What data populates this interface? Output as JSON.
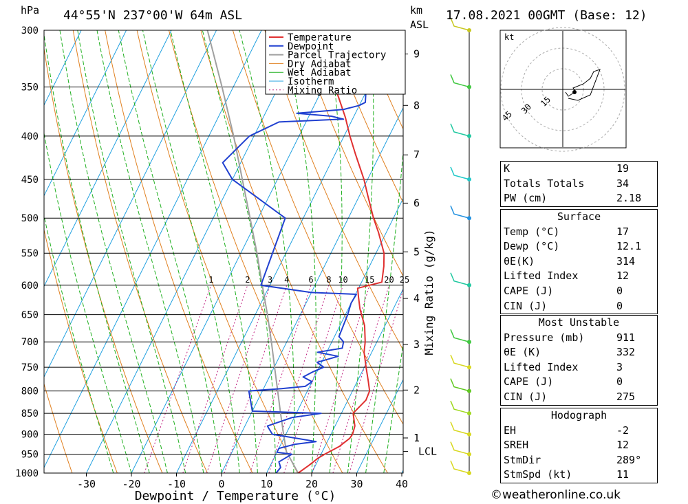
{
  "header": {
    "unit_hpa": "hPa",
    "location": "44°55'N  237°00'W  64m  ASL",
    "unit_km": "km",
    "unit_asl": "ASL",
    "datetime": "17.08.2021  00GMT  (Base: 12)"
  },
  "chart_data": {
    "type": "line",
    "title": "44°55'N 237°00'W 64m ASL",
    "xlabel": "Dewpoint / Temperature (°C)",
    "ylabel": "hPa",
    "y_scale": "log",
    "xlim": [
      -40,
      40
    ],
    "ylim": [
      1000,
      300
    ],
    "x_ticks": [
      -30,
      -20,
      -10,
      0,
      10,
      20,
      30,
      40
    ],
    "p_ticks": [
      300,
      350,
      400,
      450,
      500,
      550,
      600,
      650,
      700,
      750,
      800,
      850,
      900,
      950,
      1000
    ],
    "km_ticks": [
      {
        "label": "1",
        "p": 909
      },
      {
        "label": "2",
        "p": 798
      },
      {
        "label": "3",
        "p": 705
      },
      {
        "label": "4",
        "p": 622
      },
      {
        "label": "5",
        "p": 548
      },
      {
        "label": "6",
        "p": 480
      },
      {
        "label": "7",
        "p": 421
      },
      {
        "label": "8",
        "p": 368
      },
      {
        "label": "9",
        "p": 320
      }
    ],
    "lcl": {
      "label": "LCL",
      "p": 943
    },
    "mixing_ratio_label": "Mixing Ratio (g/kg)",
    "mixing_ratio_values": [
      "1",
      "2",
      "3",
      "4",
      "6",
      "8",
      "10",
      "15",
      "20",
      "25"
    ],
    "legend": [
      "Temperature",
      "Dewpoint",
      "Parcel Trajectory",
      "Dry Adiabat",
      "Wet Adiabat",
      "Isotherm",
      "Mixing Ratio"
    ],
    "colors": {
      "temperature": "#e03030",
      "dewpoint": "#2040d0",
      "parcel": "#a0a0a0",
      "dry_adiabat": "#e08020",
      "wet_adiabat": "#20b020",
      "isotherm": "#20a0e0",
      "mixing_ratio": "#c02080"
    },
    "series": [
      {
        "name": "Temperature",
        "points": [
          [
            1000,
            17
          ],
          [
            980,
            18.5
          ],
          [
            960,
            19.8
          ],
          [
            950,
            20.8
          ],
          [
            930,
            23.2
          ],
          [
            910,
            24.6
          ],
          [
            900,
            24.8
          ],
          [
            880,
            24.4
          ],
          [
            860,
            23.2
          ],
          [
            850,
            22.6
          ],
          [
            820,
            24
          ],
          [
            800,
            23.8
          ],
          [
            780,
            22.5
          ],
          [
            750,
            20.4
          ],
          [
            720,
            18.3
          ],
          [
            700,
            17.4
          ],
          [
            670,
            15.5
          ],
          [
            640,
            12.6
          ],
          [
            620,
            11
          ],
          [
            605,
            9.8
          ],
          [
            595,
            14.5
          ],
          [
            570,
            13.2
          ],
          [
            550,
            11.8
          ],
          [
            520,
            8.3
          ],
          [
            500,
            5.6
          ],
          [
            470,
            1.8
          ],
          [
            450,
            -0.8
          ],
          [
            420,
            -5.5
          ],
          [
            400,
            -8.7
          ],
          [
            380,
            -11.8
          ],
          [
            360,
            -15.5
          ],
          [
            340,
            -19.5
          ],
          [
            320,
            -23.2
          ],
          [
            300,
            -28
          ]
        ]
      },
      {
        "name": "Dewpoint",
        "points": [
          [
            1000,
            12.1
          ],
          [
            985,
            12.5
          ],
          [
            970,
            11.5
          ],
          [
            960,
            12.5
          ],
          [
            950,
            13.5
          ],
          [
            945,
            10
          ],
          [
            935,
            10
          ],
          [
            925,
            13
          ],
          [
            918,
            17.5
          ],
          [
            910,
            13
          ],
          [
            900,
            7
          ],
          [
            880,
            5
          ],
          [
            860,
            9.5
          ],
          [
            850,
            15.5
          ],
          [
            845,
            0
          ],
          [
            800,
            -3
          ],
          [
            795,
            4
          ],
          [
            790,
            9
          ],
          [
            780,
            10
          ],
          [
            770,
            7.5
          ],
          [
            760,
            9
          ],
          [
            750,
            11
          ],
          [
            740,
            9
          ],
          [
            728,
            13
          ],
          [
            720,
            8
          ],
          [
            712,
            13
          ],
          [
            700,
            12.6
          ],
          [
            690,
            11
          ],
          [
            650,
            10.5
          ],
          [
            630,
            10
          ],
          [
            615,
            10.2
          ],
          [
            612,
            0
          ],
          [
            600,
            -12
          ],
          [
            500,
            -14
          ],
          [
            450,
            -30
          ],
          [
            430,
            -34
          ],
          [
            400,
            -31
          ],
          [
            385,
            -26
          ],
          [
            382,
            -12
          ],
          [
            379,
            -15
          ],
          [
            376,
            -23
          ],
          [
            372,
            -13
          ],
          [
            368,
            -10
          ],
          [
            365,
            -9
          ],
          [
            355,
            -10
          ],
          [
            350,
            -8
          ],
          [
            345,
            -11
          ],
          [
            340,
            -17
          ],
          [
            335,
            -10
          ],
          [
            325,
            -14
          ],
          [
            315,
            -13
          ],
          [
            300,
            -14
          ]
        ]
      },
      {
        "name": "Parcel Trajectory",
        "points": [
          [
            1000,
            17
          ],
          [
            943,
            12
          ],
          [
            900,
            9.5
          ],
          [
            850,
            6.5
          ],
          [
            800,
            3.4
          ],
          [
            750,
            0.1
          ],
          [
            700,
            -3.4
          ],
          [
            650,
            -7.3
          ],
          [
            600,
            -11.7
          ],
          [
            550,
            -16.4
          ],
          [
            500,
            -21.8
          ],
          [
            450,
            -27.8
          ],
          [
            400,
            -34.5
          ],
          [
            350,
            -42.5
          ],
          [
            300,
            -52
          ]
        ]
      }
    ],
    "wind_barbs": [
      {
        "p": 1000,
        "color": "#d8d820"
      },
      {
        "p": 950,
        "color": "#d8d820"
      },
      {
        "p": 900,
        "color": "#d8d820"
      },
      {
        "p": 850,
        "color": "#a0d820"
      },
      {
        "p": 800,
        "color": "#60c820"
      },
      {
        "p": 750,
        "color": "#d8d820"
      },
      {
        "p": 700,
        "color": "#40c840"
      },
      {
        "p": 600,
        "color": "#20c8a0"
      },
      {
        "p": 500,
        "color": "#2090e0"
      },
      {
        "p": 450,
        "color": "#20c8c8"
      },
      {
        "p": 400,
        "color": "#20c8a0"
      },
      {
        "p": 350,
        "color": "#40c840"
      },
      {
        "p": 300,
        "color": "#c8c820"
      }
    ]
  },
  "hodograph": {
    "label": "kt",
    "ring_labels": [
      "15",
      "30",
      "45"
    ]
  },
  "stability_table": [
    {
      "label": "K",
      "value": "19"
    },
    {
      "label": "Totals Totals",
      "value": "34"
    },
    {
      "label": "PW (cm)",
      "value": "2.18"
    }
  ],
  "surface": {
    "title": "Surface",
    "rows": [
      {
        "label": "Temp (°C)",
        "value": "17"
      },
      {
        "label": "Dewp (°C)",
        "value": "12.1"
      },
      {
        "label": "θE(K)",
        "value": "314"
      },
      {
        "label": "Lifted Index",
        "value": "12"
      },
      {
        "label": "CAPE (J)",
        "value": "0"
      },
      {
        "label": "CIN (J)",
        "value": "0"
      }
    ]
  },
  "most_unstable": {
    "title": "Most Unstable",
    "rows": [
      {
        "label": "Pressure (mb)",
        "value": "911"
      },
      {
        "label": "θE (K)",
        "value": "332"
      },
      {
        "label": "Lifted Index",
        "value": "3"
      },
      {
        "label": "CAPE (J)",
        "value": "0"
      },
      {
        "label": "CIN (J)",
        "value": "275"
      }
    ]
  },
  "hodograph_table": {
    "title": "Hodograph",
    "rows": [
      {
        "label": "EH",
        "value": "-2"
      },
      {
        "label": "SREH",
        "value": "12"
      },
      {
        "label": "StmDir",
        "value": "289°"
      },
      {
        "label": "StmSpd (kt)",
        "value": "11"
      }
    ]
  },
  "footer": {
    "copyright": "©weatheronline.co.uk"
  }
}
